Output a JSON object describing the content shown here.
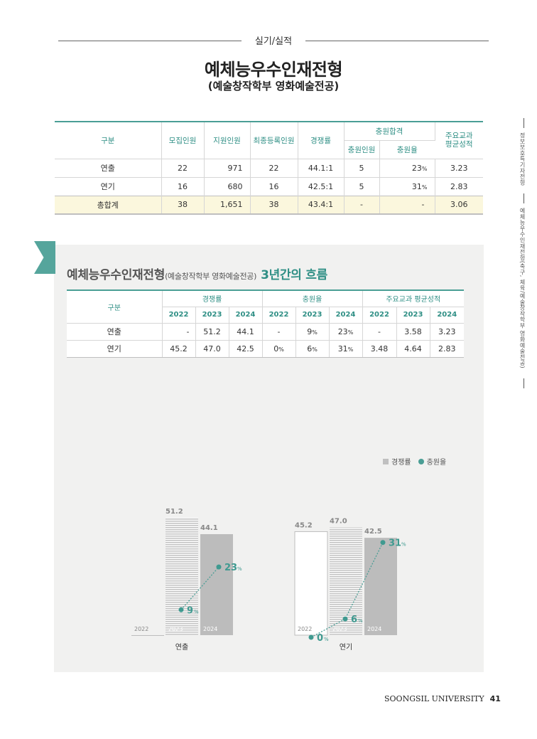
{
  "header": {
    "section_label": "실기/실적",
    "title": "예체능우수인재전형",
    "subtitle": "(예술창작학부 영화예술전공)"
  },
  "side_tabs": [
    "정보보호특기자전형",
    "예체능우수인재전형(축구, 체육/예술창작학부 영화예술전공)"
  ],
  "table1": {
    "headers": {
      "category": "구분",
      "recruit": "모집인원",
      "applicants": "지원인원",
      "final": "최종등록인원",
      "ratio": "경쟁률",
      "supplementary": "충원합격",
      "supp_count": "충원인원",
      "supp_rate": "충원율",
      "gpa": "주요교과 평균성적"
    },
    "rows": [
      {
        "name": "연출",
        "recruit": "22",
        "applicants": "971",
        "final": "22",
        "ratio": "44.1:1",
        "supp_count": "5",
        "supp_rate": "23",
        "gpa": "3.23"
      },
      {
        "name": "연기",
        "recruit": "16",
        "applicants": "680",
        "final": "16",
        "ratio": "42.5:1",
        "supp_count": "5",
        "supp_rate": "31",
        "gpa": "2.83"
      }
    ],
    "total": {
      "name": "총합계",
      "recruit": "38",
      "applicants": "1,651",
      "final": "38",
      "ratio": "43.4:1",
      "supp_count": "-",
      "supp_rate": "-",
      "gpa": "3.06"
    },
    "pct_unit": "%"
  },
  "panel": {
    "title_main": "예체능우수인재전형",
    "title_small": "(예술창작학부 영화예술전공)",
    "title_accent": "3년간의 흐름"
  },
  "table2": {
    "category": "구분",
    "groups": [
      "경쟁률",
      "충원율",
      "주요교과 평균성적"
    ],
    "years": [
      "2022",
      "2023",
      "2024"
    ],
    "rows": [
      {
        "name": "연출",
        "ratio": [
          "-",
          "51.2",
          "44.1"
        ],
        "supp": [
          "-",
          "9",
          "23"
        ],
        "gpa": [
          "-",
          "3.58",
          "3.23"
        ]
      },
      {
        "name": "연기",
        "ratio": [
          "45.2",
          "47.0",
          "42.5"
        ],
        "supp": [
          "0",
          "6",
          "31"
        ],
        "gpa": [
          "3.48",
          "4.64",
          "2.83"
        ]
      }
    ]
  },
  "legend": {
    "bar": "경쟁률",
    "dot": "충원율"
  },
  "chart_data": [
    {
      "type": "bar",
      "title": "연출",
      "categories": [
        "2022",
        "2023",
        "2024"
      ],
      "series": [
        {
          "name": "경쟁률",
          "values": [
            null,
            51.2,
            44.1
          ],
          "labels": [
            "",
            "51.2",
            "44.1"
          ]
        },
        {
          "name": "충원율",
          "values": [
            null,
            9,
            23
          ],
          "labels": [
            "",
            "9",
            "23"
          ]
        }
      ],
      "unit": "%"
    },
    {
      "type": "bar",
      "title": "연기",
      "categories": [
        "2022",
        "2023",
        "2024"
      ],
      "series": [
        {
          "name": "경쟁률",
          "values": [
            45.2,
            47.0,
            42.5
          ],
          "labels": [
            "45.2",
            "47.0",
            "42.5"
          ]
        },
        {
          "name": "충원율",
          "values": [
            0,
            6,
            31
          ],
          "labels": [
            "0",
            "6",
            "31"
          ]
        }
      ],
      "unit": "%"
    }
  ],
  "footer": {
    "university": "SOONGSIL UNIVERSITY",
    "page": "41"
  }
}
